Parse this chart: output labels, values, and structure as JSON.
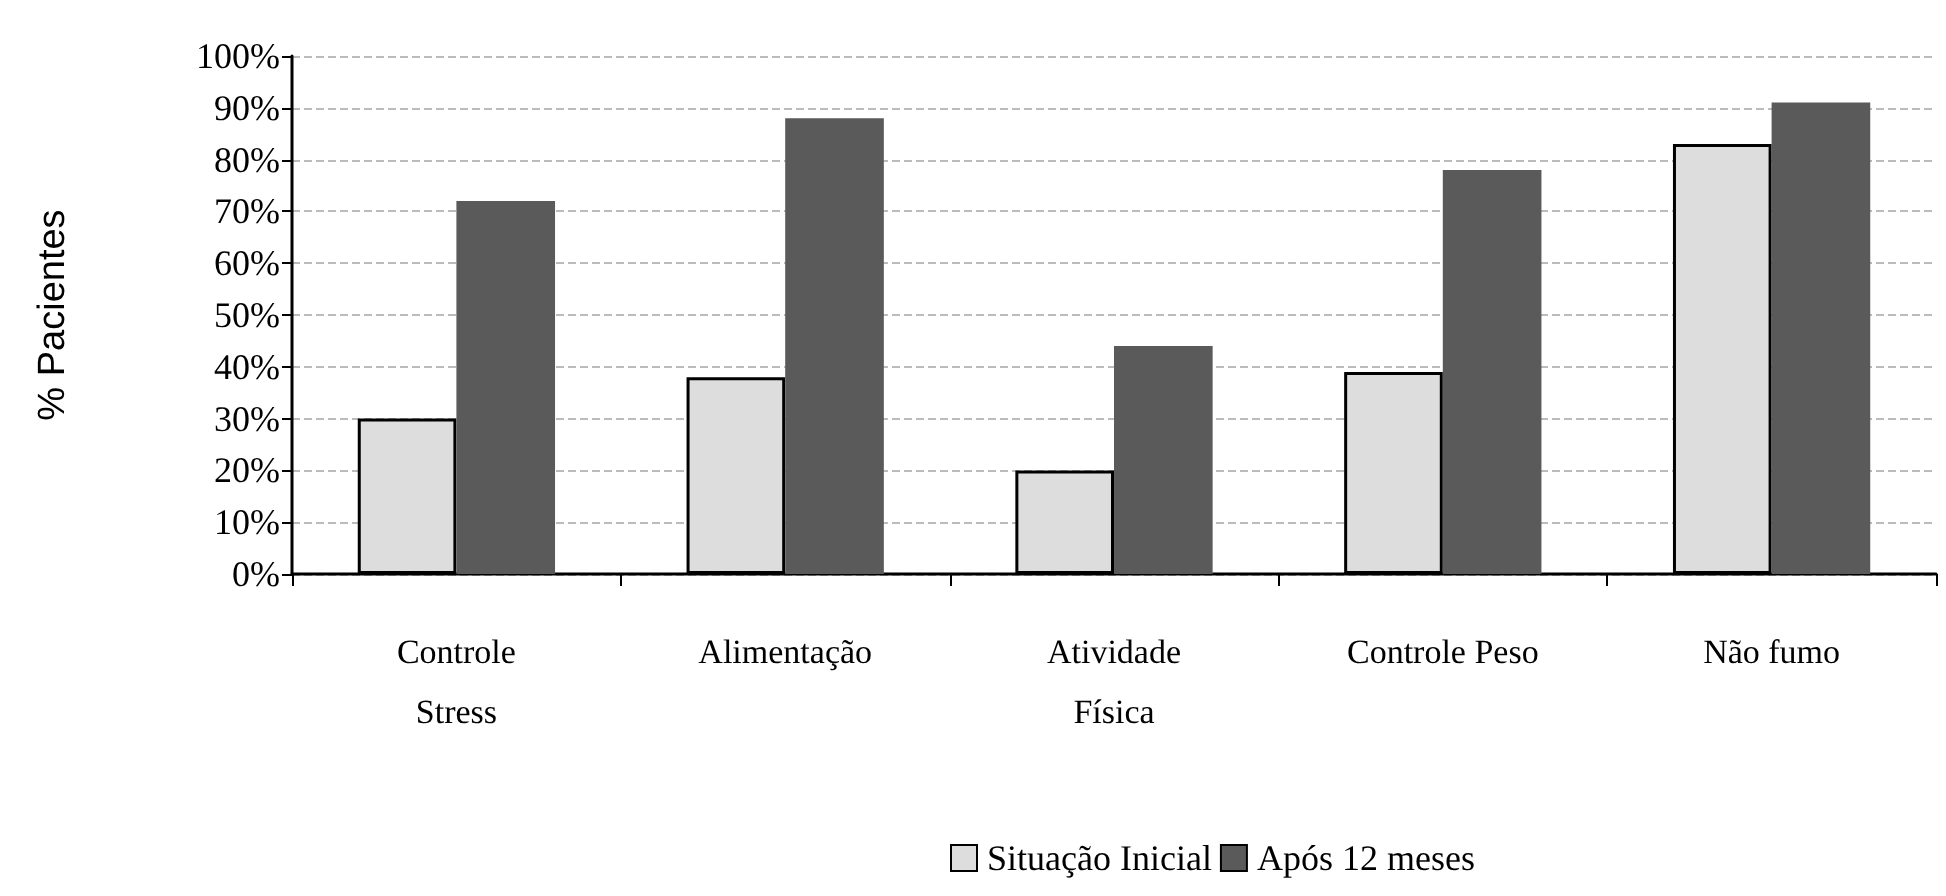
{
  "chart_data": {
    "type": "bar",
    "ylabel": "% Pacientes",
    "categories": [
      "Controle\nStress",
      "Alimentação",
      "Atividade\nFísica",
      "Controle Peso",
      "Não fumo"
    ],
    "series": [
      {
        "name": "Situação Inicial",
        "color": "#dddddd",
        "values": [
          30,
          38,
          20,
          39,
          83
        ]
      },
      {
        "name": "Após 12 meses",
        "color": "#5a5a5a",
        "values": [
          72,
          88,
          44,
          78,
          91
        ]
      }
    ],
    "ylim": [
      0,
      100
    ],
    "yticks": [
      {
        "value": 0,
        "label": "0%"
      },
      {
        "value": 10,
        "label": "10%"
      },
      {
        "value": 20,
        "label": "20%"
      },
      {
        "value": 30,
        "label": "30%"
      },
      {
        "value": 40,
        "label": "40%"
      },
      {
        "value": 50,
        "label": "50%"
      },
      {
        "value": 60,
        "label": "60%"
      },
      {
        "value": 70,
        "label": "70%"
      },
      {
        "value": 80,
        "label": "80%"
      },
      {
        "value": 90,
        "label": "90%"
      },
      {
        "value": 100,
        "label": "100%"
      }
    ],
    "grid": "y",
    "legend": "bottom"
  }
}
